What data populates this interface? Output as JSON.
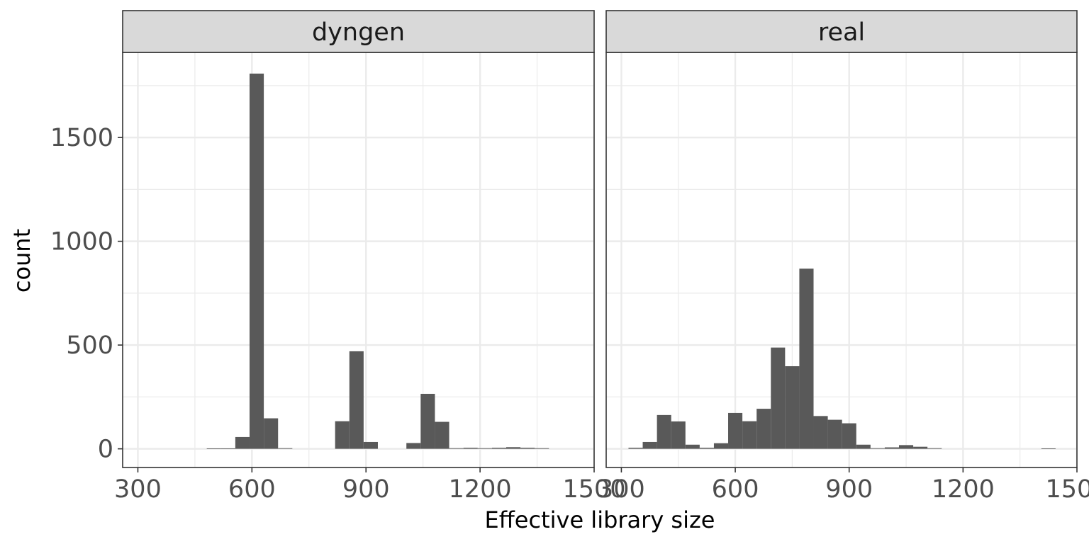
{
  "chart_data": {
    "type": "bar",
    "subtype": "faceted-histogram",
    "xlabel": "Effective library size",
    "ylabel": "count",
    "xlim": [
      260,
      1500
    ],
    "ylim": [
      -90,
      1910
    ],
    "x_ticks": [
      300,
      600,
      900,
      1200,
      1500
    ],
    "y_ticks": [
      0,
      500,
      1000,
      1500
    ],
    "bin_width": 37.5,
    "grid": true,
    "bar_color": "#595959",
    "panel_border_color": "#333333",
    "strip_fill_color": "#d9d9d9",
    "grid_color": "#ebebeb",
    "facets": [
      {
        "name": "dyngen",
        "bins": [
          {
            "x": 500,
            "count": 2
          },
          {
            "x": 537.5,
            "count": 2
          },
          {
            "x": 575,
            "count": 57
          },
          {
            "x": 612.5,
            "count": 1808
          },
          {
            "x": 650,
            "count": 147
          },
          {
            "x": 687.5,
            "count": 3
          },
          {
            "x": 837.5,
            "count": 133
          },
          {
            "x": 875,
            "count": 470
          },
          {
            "x": 912.5,
            "count": 33
          },
          {
            "x": 1025,
            "count": 28
          },
          {
            "x": 1062.5,
            "count": 265
          },
          {
            "x": 1100,
            "count": 130
          },
          {
            "x": 1137.5,
            "count": 3
          },
          {
            "x": 1175,
            "count": 5
          },
          {
            "x": 1212.5,
            "count": 3
          },
          {
            "x": 1250,
            "count": 5
          },
          {
            "x": 1287.5,
            "count": 8
          },
          {
            "x": 1325,
            "count": 5
          },
          {
            "x": 1362.5,
            "count": 3
          }
        ]
      },
      {
        "name": "real",
        "bins": [
          {
            "x": 337.5,
            "count": 5
          },
          {
            "x": 375,
            "count": 33
          },
          {
            "x": 412.5,
            "count": 163
          },
          {
            "x": 450,
            "count": 132
          },
          {
            "x": 487.5,
            "count": 20
          },
          {
            "x": 525,
            "count": 5
          },
          {
            "x": 562.5,
            "count": 27
          },
          {
            "x": 600,
            "count": 173
          },
          {
            "x": 637.5,
            "count": 133
          },
          {
            "x": 675,
            "count": 193
          },
          {
            "x": 712.5,
            "count": 488
          },
          {
            "x": 750,
            "count": 398
          },
          {
            "x": 787.5,
            "count": 868
          },
          {
            "x": 825,
            "count": 158
          },
          {
            "x": 862.5,
            "count": 140
          },
          {
            "x": 900,
            "count": 123
          },
          {
            "x": 937.5,
            "count": 20
          },
          {
            "x": 975,
            "count": 3
          },
          {
            "x": 1012.5,
            "count": 7
          },
          {
            "x": 1050,
            "count": 18
          },
          {
            "x": 1087.5,
            "count": 10
          },
          {
            "x": 1125,
            "count": 3
          },
          {
            "x": 1425,
            "count": 2
          }
        ]
      }
    ]
  }
}
